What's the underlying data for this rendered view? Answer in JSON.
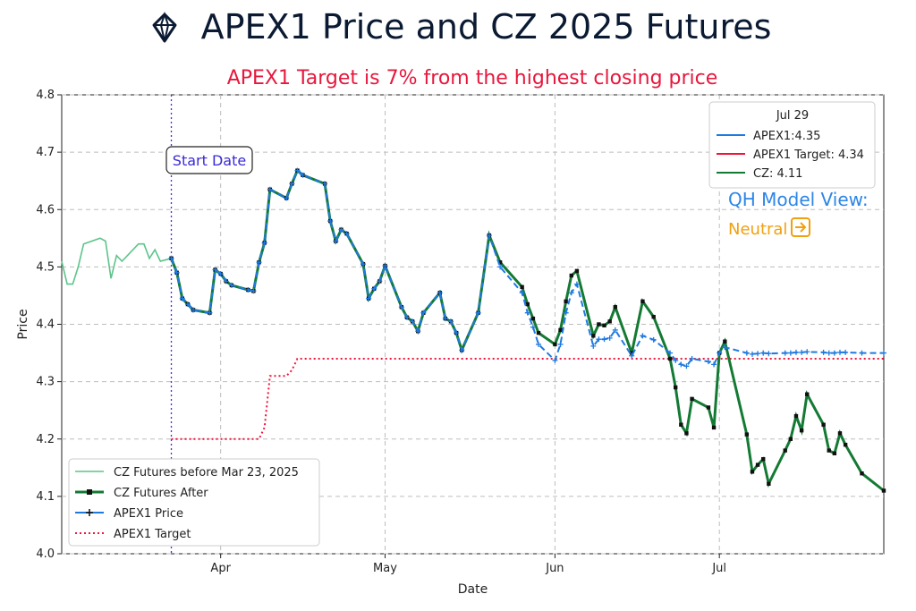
{
  "header": {
    "title": "APEX1 Price and CZ 2025 Futures",
    "subtitle": "APEX1 Target is 7% from the highest closing price",
    "logo": "gem-logo-icon"
  },
  "colors": {
    "apex": "#1f7ae0",
    "target": "#f0143c",
    "cz_before": "#5cc48a",
    "cz_after": "#137a33",
    "model": "#2c86e8",
    "neutral": "#f0a010",
    "startline": "#4b2fd6",
    "subtitle": "#e8173c"
  },
  "annotations": {
    "start_date": "Start Date",
    "model_view": "QH Model View:",
    "model_status": "Neutral",
    "model_status_icon": "arrow-right-icon"
  },
  "info_legend": {
    "title": "Jul 29",
    "items": [
      {
        "label": "APEX1:4.35",
        "color": "#1f7ae0"
      },
      {
        "label": "APEX1 Target: 4.34",
        "color": "#f0143c"
      },
      {
        "label": "CZ: 4.11",
        "color": "#137a33"
      }
    ]
  },
  "series_legend": {
    "items": [
      {
        "label": "CZ Futures before Mar 23, 2025"
      },
      {
        "label": "CZ Futures After"
      },
      {
        "label": "APEX1 Price"
      },
      {
        "label": "APEX1 Target"
      }
    ]
  },
  "chart_data": {
    "type": "line",
    "title": "APEX1 Price and CZ 2025 Futures",
    "subtitle": "APEX1 Target is 7% from the highest closing price",
    "xlabel": "Date",
    "ylabel": "Price",
    "xlim": [
      "2025-03-03",
      "2025-07-31"
    ],
    "ylim": [
      4.0,
      4.8
    ],
    "yticks": [
      "4.0",
      "4.1",
      "4.2",
      "4.3",
      "4.4",
      "4.5",
      "4.6",
      "4.7",
      "4.8"
    ],
    "xticks": [
      {
        "date": "2025-04-01",
        "label": "Apr"
      },
      {
        "date": "2025-05-01",
        "label": "May"
      },
      {
        "date": "2025-06-01",
        "label": "Jun"
      },
      {
        "date": "2025-07-01",
        "label": "Jul"
      }
    ],
    "grid": true,
    "start_date": "2025-03-23",
    "series": [
      {
        "name": "CZ Futures before Mar 23, 2025",
        "points": [
          [
            "2025-03-03",
            4.51
          ],
          [
            "2025-03-04",
            4.47
          ],
          [
            "2025-03-05",
            4.47
          ],
          [
            "2025-03-06",
            4.5
          ],
          [
            "2025-03-07",
            4.54
          ],
          [
            "2025-03-10",
            4.55
          ],
          [
            "2025-03-11",
            4.545
          ],
          [
            "2025-03-12",
            4.48
          ],
          [
            "2025-03-13",
            4.52
          ],
          [
            "2025-03-14",
            4.51
          ],
          [
            "2025-03-17",
            4.54
          ],
          [
            "2025-03-18",
            4.54
          ],
          [
            "2025-03-19",
            4.515
          ],
          [
            "2025-03-20",
            4.53
          ],
          [
            "2025-03-21",
            4.51
          ],
          [
            "2025-03-23",
            4.515
          ]
        ]
      },
      {
        "name": "CZ Futures After",
        "points": [
          [
            "2025-03-23",
            4.515
          ],
          [
            "2025-03-24",
            4.49
          ],
          [
            "2025-03-25",
            4.445
          ],
          [
            "2025-03-26",
            4.435
          ],
          [
            "2025-03-27",
            4.425
          ],
          [
            "2025-03-30",
            4.42
          ],
          [
            "2025-03-31",
            4.495
          ],
          [
            "2025-04-01",
            4.488
          ],
          [
            "2025-04-02",
            4.475
          ],
          [
            "2025-04-03",
            4.468
          ],
          [
            "2025-04-06",
            4.46
          ],
          [
            "2025-04-07",
            4.458
          ],
          [
            "2025-04-08",
            4.508
          ],
          [
            "2025-04-09",
            4.542
          ],
          [
            "2025-04-10",
            4.635
          ],
          [
            "2025-04-13",
            4.62
          ],
          [
            "2025-04-14",
            4.645
          ],
          [
            "2025-04-15",
            4.668
          ],
          [
            "2025-04-16",
            4.66
          ],
          [
            "2025-04-20",
            4.645
          ],
          [
            "2025-04-21",
            4.58
          ],
          [
            "2025-04-22",
            4.545
          ],
          [
            "2025-04-23",
            4.565
          ],
          [
            "2025-04-24",
            4.558
          ],
          [
            "2025-04-27",
            4.505
          ],
          [
            "2025-04-28",
            4.445
          ],
          [
            "2025-04-29",
            4.462
          ],
          [
            "2025-04-30",
            4.475
          ],
          [
            "2025-05-01",
            4.502
          ],
          [
            "2025-05-04",
            4.43
          ],
          [
            "2025-05-05",
            4.412
          ],
          [
            "2025-05-06",
            4.405
          ],
          [
            "2025-05-07",
            4.388
          ],
          [
            "2025-05-08",
            4.42
          ],
          [
            "2025-05-11",
            4.455
          ],
          [
            "2025-05-12",
            4.41
          ],
          [
            "2025-05-13",
            4.405
          ],
          [
            "2025-05-14",
            4.385
          ],
          [
            "2025-05-15",
            4.355
          ],
          [
            "2025-05-18",
            4.42
          ],
          [
            "2025-05-20",
            4.555
          ],
          [
            "2025-05-22",
            4.508
          ],
          [
            "2025-05-26",
            4.465
          ],
          [
            "2025-05-27",
            4.435
          ],
          [
            "2025-05-28",
            4.41
          ],
          [
            "2025-05-29",
            4.385
          ],
          [
            "2025-06-01",
            4.365
          ],
          [
            "2025-06-02",
            4.39
          ],
          [
            "2025-06-03",
            4.44
          ],
          [
            "2025-06-04",
            4.485
          ],
          [
            "2025-06-05",
            4.493
          ],
          [
            "2025-06-08",
            4.38
          ],
          [
            "2025-06-09",
            4.4
          ],
          [
            "2025-06-10",
            4.398
          ],
          [
            "2025-06-11",
            4.405
          ],
          [
            "2025-06-12",
            4.43
          ],
          [
            "2025-06-15",
            4.35
          ],
          [
            "2025-06-17",
            4.44
          ],
          [
            "2025-06-19",
            4.413
          ],
          [
            "2025-06-22",
            4.34
          ],
          [
            "2025-06-23",
            4.29
          ],
          [
            "2025-06-24",
            4.225
          ],
          [
            "2025-06-25",
            4.21
          ],
          [
            "2025-06-26",
            4.27
          ],
          [
            "2025-06-29",
            4.255
          ],
          [
            "2025-06-30",
            4.22
          ],
          [
            "2025-07-01",
            4.35
          ],
          [
            "2025-07-02",
            4.37
          ],
          [
            "2025-07-06",
            4.208
          ],
          [
            "2025-07-07",
            4.143
          ],
          [
            "2025-07-08",
            4.155
          ],
          [
            "2025-07-09",
            4.165
          ],
          [
            "2025-07-10",
            4.122
          ],
          [
            "2025-07-13",
            4.18
          ],
          [
            "2025-07-14",
            4.2
          ],
          [
            "2025-07-15",
            4.24
          ],
          [
            "2025-07-16",
            4.215
          ],
          [
            "2025-07-17",
            4.278
          ],
          [
            "2025-07-20",
            4.225
          ],
          [
            "2025-07-21",
            4.18
          ],
          [
            "2025-07-22",
            4.175
          ],
          [
            "2025-07-23",
            4.21
          ],
          [
            "2025-07-24",
            4.19
          ],
          [
            "2025-07-27",
            4.14
          ],
          [
            "2025-07-31",
            4.11
          ]
        ]
      },
      {
        "name": "APEX1 Price",
        "points": [
          [
            "2025-03-23",
            4.515
          ],
          [
            "2025-03-24",
            4.49
          ],
          [
            "2025-03-25",
            4.445
          ],
          [
            "2025-03-26",
            4.435
          ],
          [
            "2025-03-27",
            4.425
          ],
          [
            "2025-03-30",
            4.42
          ],
          [
            "2025-03-31",
            4.495
          ],
          [
            "2025-04-01",
            4.488
          ],
          [
            "2025-04-02",
            4.475
          ],
          [
            "2025-04-03",
            4.468
          ],
          [
            "2025-04-06",
            4.46
          ],
          [
            "2025-04-07",
            4.458
          ],
          [
            "2025-04-08",
            4.508
          ],
          [
            "2025-04-09",
            4.542
          ],
          [
            "2025-04-10",
            4.635
          ],
          [
            "2025-04-13",
            4.62
          ],
          [
            "2025-04-14",
            4.645
          ],
          [
            "2025-04-15",
            4.668
          ],
          [
            "2025-04-16",
            4.66
          ],
          [
            "2025-04-20",
            4.645
          ],
          [
            "2025-04-21",
            4.58
          ],
          [
            "2025-04-22",
            4.545
          ],
          [
            "2025-04-23",
            4.565
          ],
          [
            "2025-04-24",
            4.558
          ],
          [
            "2025-04-27",
            4.505
          ],
          [
            "2025-04-28",
            4.445
          ],
          [
            "2025-04-29",
            4.462
          ],
          [
            "2025-04-30",
            4.475
          ],
          [
            "2025-05-01",
            4.502
          ],
          [
            "2025-05-04",
            4.43
          ],
          [
            "2025-05-05",
            4.412
          ],
          [
            "2025-05-06",
            4.405
          ],
          [
            "2025-05-07",
            4.388
          ],
          [
            "2025-05-08",
            4.42
          ],
          [
            "2025-05-11",
            4.455
          ],
          [
            "2025-05-12",
            4.41
          ],
          [
            "2025-05-13",
            4.405
          ],
          [
            "2025-05-14",
            4.385
          ],
          [
            "2025-05-15",
            4.355
          ],
          [
            "2025-05-18",
            4.42
          ],
          [
            "2025-05-20",
            4.555
          ],
          [
            "2025-05-22",
            4.5
          ],
          [
            "2025-05-26",
            4.455
          ],
          [
            "2025-05-27",
            4.42
          ],
          [
            "2025-05-28",
            4.395
          ],
          [
            "2025-05-29",
            4.365
          ],
          [
            "2025-06-01",
            4.337
          ],
          [
            "2025-06-02",
            4.365
          ],
          [
            "2025-06-03",
            4.42
          ],
          [
            "2025-06-04",
            4.455
          ],
          [
            "2025-06-05",
            4.47
          ],
          [
            "2025-06-08",
            4.362
          ],
          [
            "2025-06-09",
            4.374
          ],
          [
            "2025-06-10",
            4.374
          ],
          [
            "2025-06-11",
            4.376
          ],
          [
            "2025-06-12",
            4.39
          ],
          [
            "2025-06-15",
            4.345
          ],
          [
            "2025-06-17",
            4.38
          ],
          [
            "2025-06-19",
            4.373
          ],
          [
            "2025-06-22",
            4.35
          ],
          [
            "2025-06-23",
            4.337
          ],
          [
            "2025-06-24",
            4.33
          ],
          [
            "2025-06-25",
            4.327
          ],
          [
            "2025-06-26",
            4.34
          ],
          [
            "2025-06-29",
            4.335
          ],
          [
            "2025-06-30",
            4.33
          ],
          [
            "2025-07-01",
            4.35
          ],
          [
            "2025-07-02",
            4.36
          ],
          [
            "2025-07-06",
            4.35
          ],
          [
            "2025-07-07",
            4.348
          ],
          [
            "2025-07-08",
            4.349
          ],
          [
            "2025-07-09",
            4.35
          ],
          [
            "2025-07-10",
            4.349
          ],
          [
            "2025-07-13",
            4.35
          ],
          [
            "2025-07-14",
            4.35
          ],
          [
            "2025-07-15",
            4.351
          ],
          [
            "2025-07-16",
            4.351
          ],
          [
            "2025-07-17",
            4.352
          ],
          [
            "2025-07-20",
            4.351
          ],
          [
            "2025-07-21",
            4.35
          ],
          [
            "2025-07-22",
            4.35
          ],
          [
            "2025-07-23",
            4.351
          ],
          [
            "2025-07-24",
            4.351
          ],
          [
            "2025-07-27",
            4.35
          ],
          [
            "2025-07-31",
            4.35
          ]
        ]
      },
      {
        "name": "APEX1 Target",
        "points": [
          [
            "2025-03-23",
            4.2
          ],
          [
            "2025-04-08",
            4.2
          ],
          [
            "2025-04-09",
            4.22
          ],
          [
            "2025-04-10",
            4.31
          ],
          [
            "2025-04-13",
            4.31
          ],
          [
            "2025-04-14",
            4.32
          ],
          [
            "2025-04-15",
            4.34
          ],
          [
            "2025-07-31",
            4.34
          ]
        ]
      }
    ]
  }
}
